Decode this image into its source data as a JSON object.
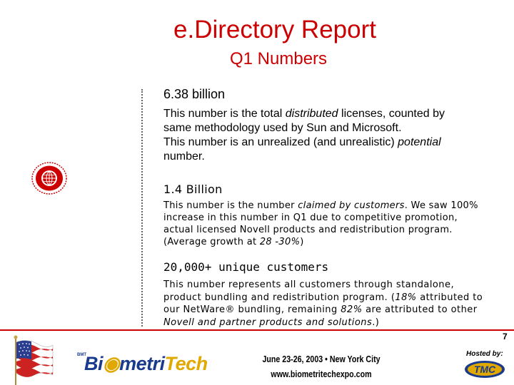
{
  "header": {
    "title": "e.Directory Report",
    "subtitle": "Q1 Numbers"
  },
  "sections": [
    {
      "heading": "6.38 billion",
      "lines": [
        [
          "This number is the total ",
          "distributed",
          " licenses, counted by"
        ],
        [
          "same methodology used by Sun and Microsoft."
        ],
        [
          "This number is an unrealized (and unrealistic) ",
          "potential"
        ],
        [
          "number."
        ]
      ]
    },
    {
      "heading": "1.4 Billion",
      "lines": [
        [
          "This number is the number ",
          "claimed by customers",
          ". We saw 100%"
        ],
        [
          "increase in this number in Q1 due to competitive promotion,"
        ],
        [
          "actual licensed Novell products and redistribution program."
        ],
        [
          "(Average growth at ",
          "28 -30%",
          ")"
        ]
      ]
    },
    {
      "heading": "20,000+ unique customers",
      "lines": [
        [
          "This number represents all customers through standalone,"
        ],
        [
          "product bundling and redistribution program. (",
          "18%",
          " attributed to"
        ],
        [
          "our NetWare® bundling, remaining ",
          "82%",
          " are attributed to other"
        ],
        [
          "",
          "Novell and partner products and solutions",
          ".)"
        ]
      ]
    }
  ],
  "footer": {
    "page_number": "7",
    "logo_small": "BMT",
    "logo_text_a": "Bi",
    "logo_text_b": "metri",
    "logo_text_c": "Tech",
    "event_line1": "June 23-26, 2003 • New York City",
    "event_line2": "www.biometritechexpo.com",
    "hosted_by": "Hosted by:",
    "host_logo": "TMC"
  },
  "colors": {
    "accent": "#cc0000",
    "logo_blue": "#1a3a8c",
    "logo_gold": "#e0a800"
  },
  "icons": [
    "globe-emblem-icon",
    "us-flag-icon"
  ]
}
